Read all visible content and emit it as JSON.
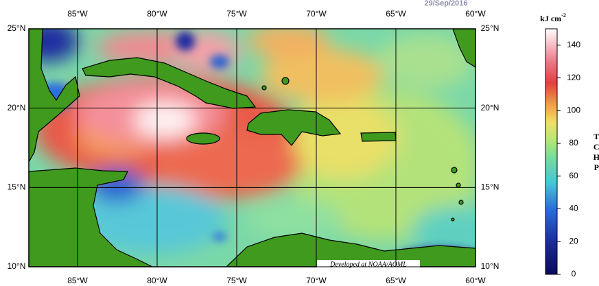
{
  "map": {
    "date": "29/Sep/2016",
    "credit": "Developed at NOAA/AOML",
    "lonlim": [
      -88.06,
      -60
    ],
    "latlim": [
      10,
      25
    ],
    "lonticks": [
      {
        "value": -85,
        "label": "85°W"
      },
      {
        "value": -80,
        "label": "80°W"
      },
      {
        "value": -75,
        "label": "75°W"
      },
      {
        "value": -70,
        "label": "70°W"
      },
      {
        "value": -65,
        "label": "65°W"
      },
      {
        "value": -60,
        "label": "60°W"
      }
    ],
    "latticks": [
      {
        "value": 25,
        "label": "25°N"
      },
      {
        "value": 20,
        "label": "20°N"
      },
      {
        "value": 15,
        "label": "15°N"
      },
      {
        "value": 10,
        "label": "10°N"
      }
    ],
    "colorbar": {
      "unit": {
        "base": "kJ cm",
        "exponent": "-2"
      },
      "variable": "TCHP",
      "lim": [
        0,
        150
      ],
      "ticks": [
        0,
        20,
        40,
        60,
        80,
        100,
        120,
        140
      ]
    }
  }
}
